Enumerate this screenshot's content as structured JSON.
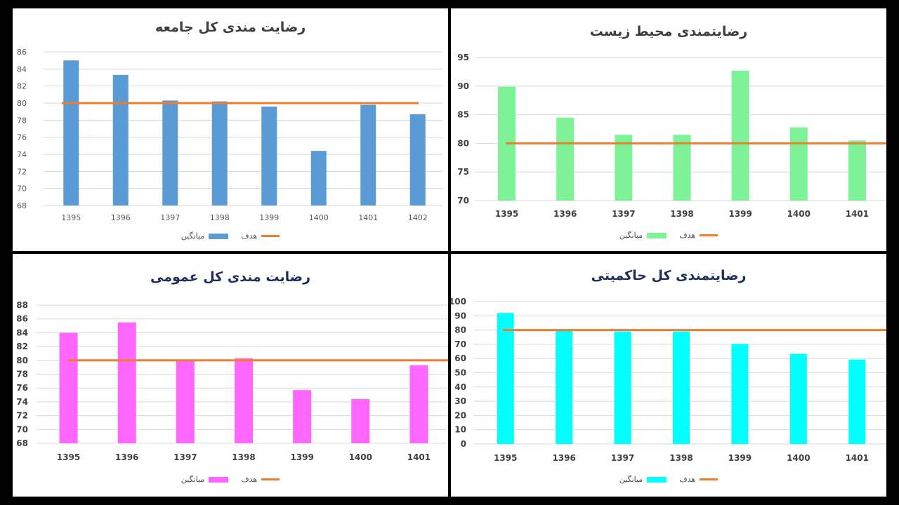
{
  "chart_data": [
    {
      "type": "bar",
      "title": "رضایت مندی کل جامعه",
      "title_color": "#3f3f3f",
      "categories": [
        "1395",
        "1396",
        "1397",
        "1398",
        "1399",
        "1400",
        "1401",
        "1402"
      ],
      "series": [
        {
          "name": "میانگین",
          "values": [
            85,
            83.3,
            80.3,
            80.2,
            79.6,
            74.4,
            79.8,
            78.7
          ],
          "color": "#5b9bd5"
        }
      ],
      "target": {
        "name": "هدف",
        "value": 80,
        "color": "#ed7d31"
      },
      "ylim": [
        68,
        86
      ],
      "yticks": [
        68,
        70,
        72,
        74,
        76,
        78,
        80,
        82,
        84,
        86
      ],
      "grid": true,
      "legend_position": "bottom",
      "tick_bold": false
    },
    {
      "type": "bar",
      "title": "رضایتمندی محیط زیست",
      "title_color": "#3f3f3f",
      "categories": [
        "1395",
        "1396",
        "1397",
        "1398",
        "1399",
        "1400",
        "1401"
      ],
      "series": [
        {
          "name": "میانگین",
          "values": [
            89.9,
            84.5,
            81.5,
            81.5,
            92.7,
            82.8,
            80.5
          ],
          "color": "#7ef296"
        }
      ],
      "target": {
        "name": "هدف",
        "value": 80,
        "color": "#ed7d31"
      },
      "ylim": [
        70,
        95
      ],
      "yticks": [
        70,
        75,
        80,
        85,
        90,
        95
      ],
      "grid": true,
      "legend_position": "bottom",
      "tick_bold": true
    },
    {
      "type": "bar",
      "title": "رضایت مندی کل عمومی",
      "title_color": "#1f2d5c",
      "categories": [
        "1395",
        "1396",
        "1397",
        "1398",
        "1399",
        "1400",
        "1401"
      ],
      "series": [
        {
          "name": "میانگین",
          "values": [
            84,
            85.5,
            80,
            80.3,
            75.7,
            74.4,
            79.3
          ],
          "color": "#ff66ff"
        }
      ],
      "target": {
        "name": "هدف",
        "value": 80,
        "color": "#ed7d31"
      },
      "ylim": [
        68,
        88
      ],
      "yticks": [
        68,
        70,
        72,
        74,
        76,
        78,
        80,
        82,
        84,
        86,
        88
      ],
      "grid": true,
      "legend_position": "bottom",
      "tick_bold": true
    },
    {
      "type": "bar",
      "title": "رضایتمندی کل حاکمیتی",
      "title_color": "#1f2d5c",
      "categories": [
        "1395",
        "1396",
        "1397",
        "1398",
        "1399",
        "1400",
        "1401"
      ],
      "series": [
        {
          "name": "میانگین",
          "values": [
            92,
            79.5,
            79,
            79,
            70.3,
            63.3,
            59.3
          ],
          "color": "#00ffff"
        }
      ],
      "target": {
        "name": "هدف",
        "value": 80,
        "color": "#ed7d31"
      },
      "ylim": [
        0,
        100
      ],
      "yticks": [
        0,
        10,
        20,
        30,
        40,
        50,
        60,
        70,
        80,
        90,
        100
      ],
      "grid": true,
      "legend_position": "bottom",
      "tick_bold": true
    }
  ]
}
